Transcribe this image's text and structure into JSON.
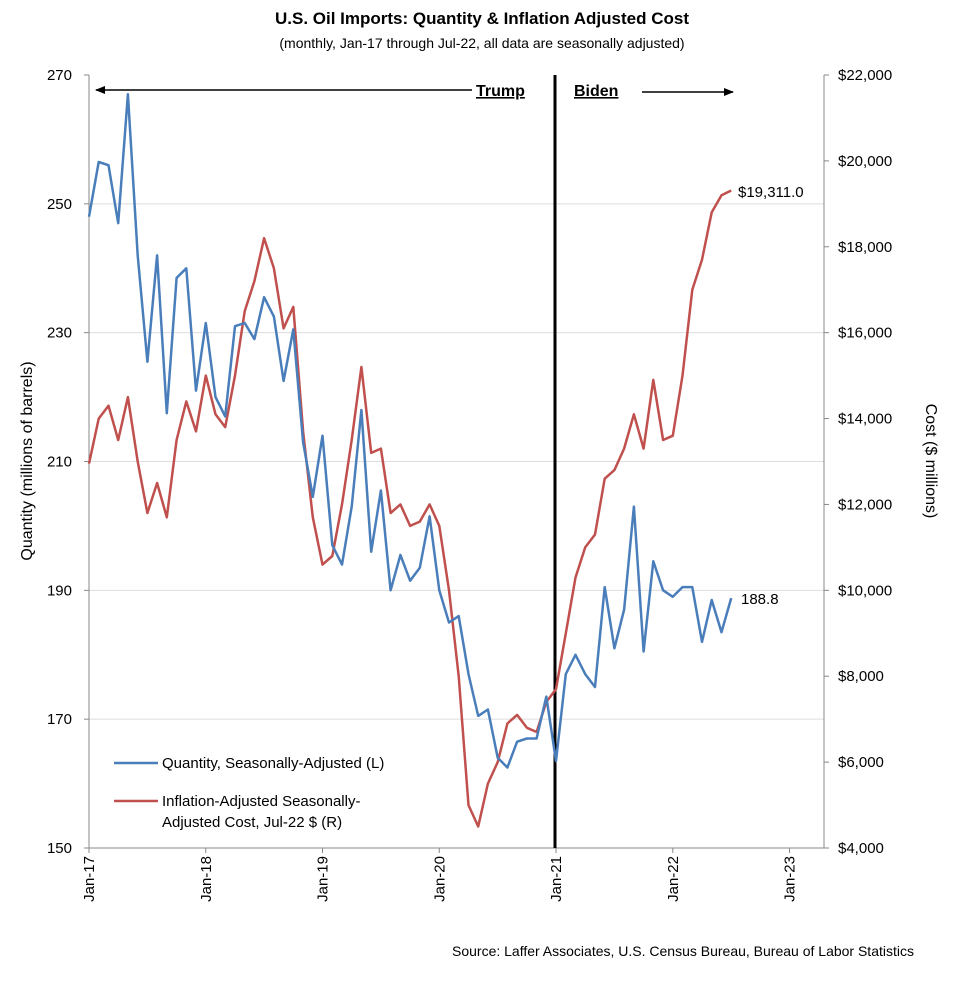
{
  "chart_data": {
    "type": "line",
    "title": "U.S. Oil Imports: Quantity & Inflation Adjusted Cost",
    "subtitle": "(monthly, Jan-17 through Jul-22, all data are seasonally adjusted)",
    "ylabel_left": "Quantity (millions of barrels)",
    "ylabel_right": "Cost ($ millions)",
    "source": "Source: Laffer Associates, U.S. Census Bureau, Bureau of Labor Statistics",
    "x_tick_labels": [
      "Jan-17",
      "Jan-18",
      "Jan-19",
      "Jan-20",
      "Jan-21",
      "Jan-22",
      "Jan-23"
    ],
    "ylim_left": [
      150,
      270
    ],
    "yticks_left": [
      "150",
      "170",
      "190",
      "210",
      "230",
      "250",
      "270"
    ],
    "ylim_right": [
      4000,
      22000
    ],
    "yticks_right": [
      "$4,000",
      "$6,000",
      "$8,000",
      "$10,000",
      "$12,000",
      "$14,000",
      "$16,000",
      "$18,000",
      "$20,000",
      "$22,000"
    ],
    "annotations": {
      "trump": "Trump",
      "biden": "Biden",
      "quantity_end": "188.8",
      "cost_end": "$19,311.0"
    },
    "series": [
      {
        "name": "Quantity, Seasonally-Adjusted (L)",
        "axis": "left",
        "color": "#4a7ebb",
        "values": [
          248.0,
          256.5,
          256.0,
          247.0,
          267.0,
          242.0,
          225.5,
          242.0,
          217.5,
          238.5,
          240.0,
          221.0,
          231.5,
          220.0,
          217.0,
          231.0,
          231.5,
          229.0,
          235.5,
          232.5,
          222.5,
          230.5,
          213.0,
          204.5,
          214.0,
          197.0,
          194.0,
          203.0,
          218.0,
          196.0,
          205.5,
          190.0,
          195.5,
          191.5,
          193.5,
          201.5,
          190.0,
          185.0,
          186.0,
          177.0,
          170.5,
          171.5,
          164.0,
          162.5,
          166.5,
          167.0,
          167.0,
          173.5,
          163.5,
          177.0,
          180.0,
          177.0,
          175.0,
          190.5,
          181.0,
          187.0,
          203.0,
          180.5,
          194.5,
          190.0,
          189.0,
          190.5,
          190.5,
          182.0,
          188.5,
          183.5,
          188.8
        ]
      },
      {
        "name": "Inflation-Adjusted Seasonally-Adjusted Cost, Jul-22 $ (R)",
        "axis": "right",
        "color": "#c0504d",
        "values": [
          12950,
          14000,
          14300,
          13500,
          14500,
          13000,
          11800,
          12500,
          11700,
          13500,
          14400,
          13700,
          15000,
          14100,
          13800,
          15000,
          16500,
          17200,
          18200,
          17500,
          16100,
          16600,
          13700,
          11700,
          10600,
          10800,
          12000,
          13500,
          15200,
          13200,
          13300,
          11800,
          12000,
          11500,
          11600,
          12000,
          11500,
          10000,
          8000,
          5000,
          4500,
          5500,
          6000,
          6900,
          7100,
          6800,
          6700,
          7400,
          7700,
          9000,
          10300,
          11000,
          11300,
          12600,
          12800,
          13300,
          14100,
          13300,
          14900,
          13500,
          13600,
          15000,
          17000,
          17700,
          18800,
          19200,
          19311
        ]
      }
    ]
  }
}
